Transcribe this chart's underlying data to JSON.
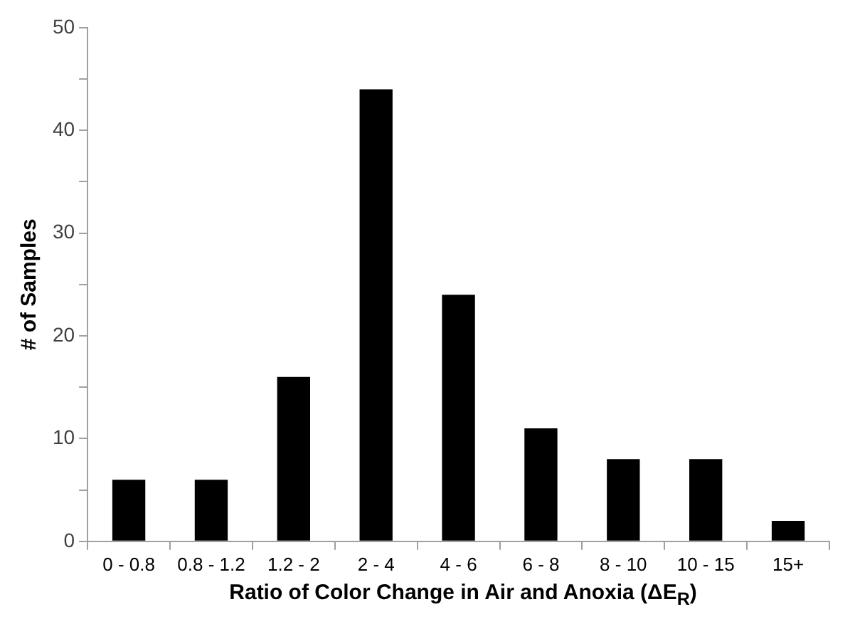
{
  "chart_data": {
    "type": "bar",
    "categories": [
      "0 - 0.8",
      "0.8 - 1.2",
      "1.2 - 2",
      "2 - 4",
      "4 - 6",
      "6 - 8",
      "8 - 10",
      "10 - 15",
      "15+"
    ],
    "values": [
      6,
      6,
      16,
      44,
      24,
      11,
      8,
      8,
      2
    ],
    "color": "#000000",
    "xlabel": "Ratio of Color Change in Air and Anoxia (ΔE$_{R}$)",
    "ylabel": "# of Samples",
    "ylim": [
      0,
      50
    ],
    "yticks": [
      0,
      {
        "value": 5,
        "label": null
      },
      10,
      {
        "value": 15,
        "label": null
      },
      20,
      {
        "value": 25,
        "label": null
      },
      30,
      {
        "value": 35,
        "label": null
      },
      40,
      {
        "value": 45,
        "label": null
      },
      50
    ],
    "grid": false,
    "legend": false
  }
}
